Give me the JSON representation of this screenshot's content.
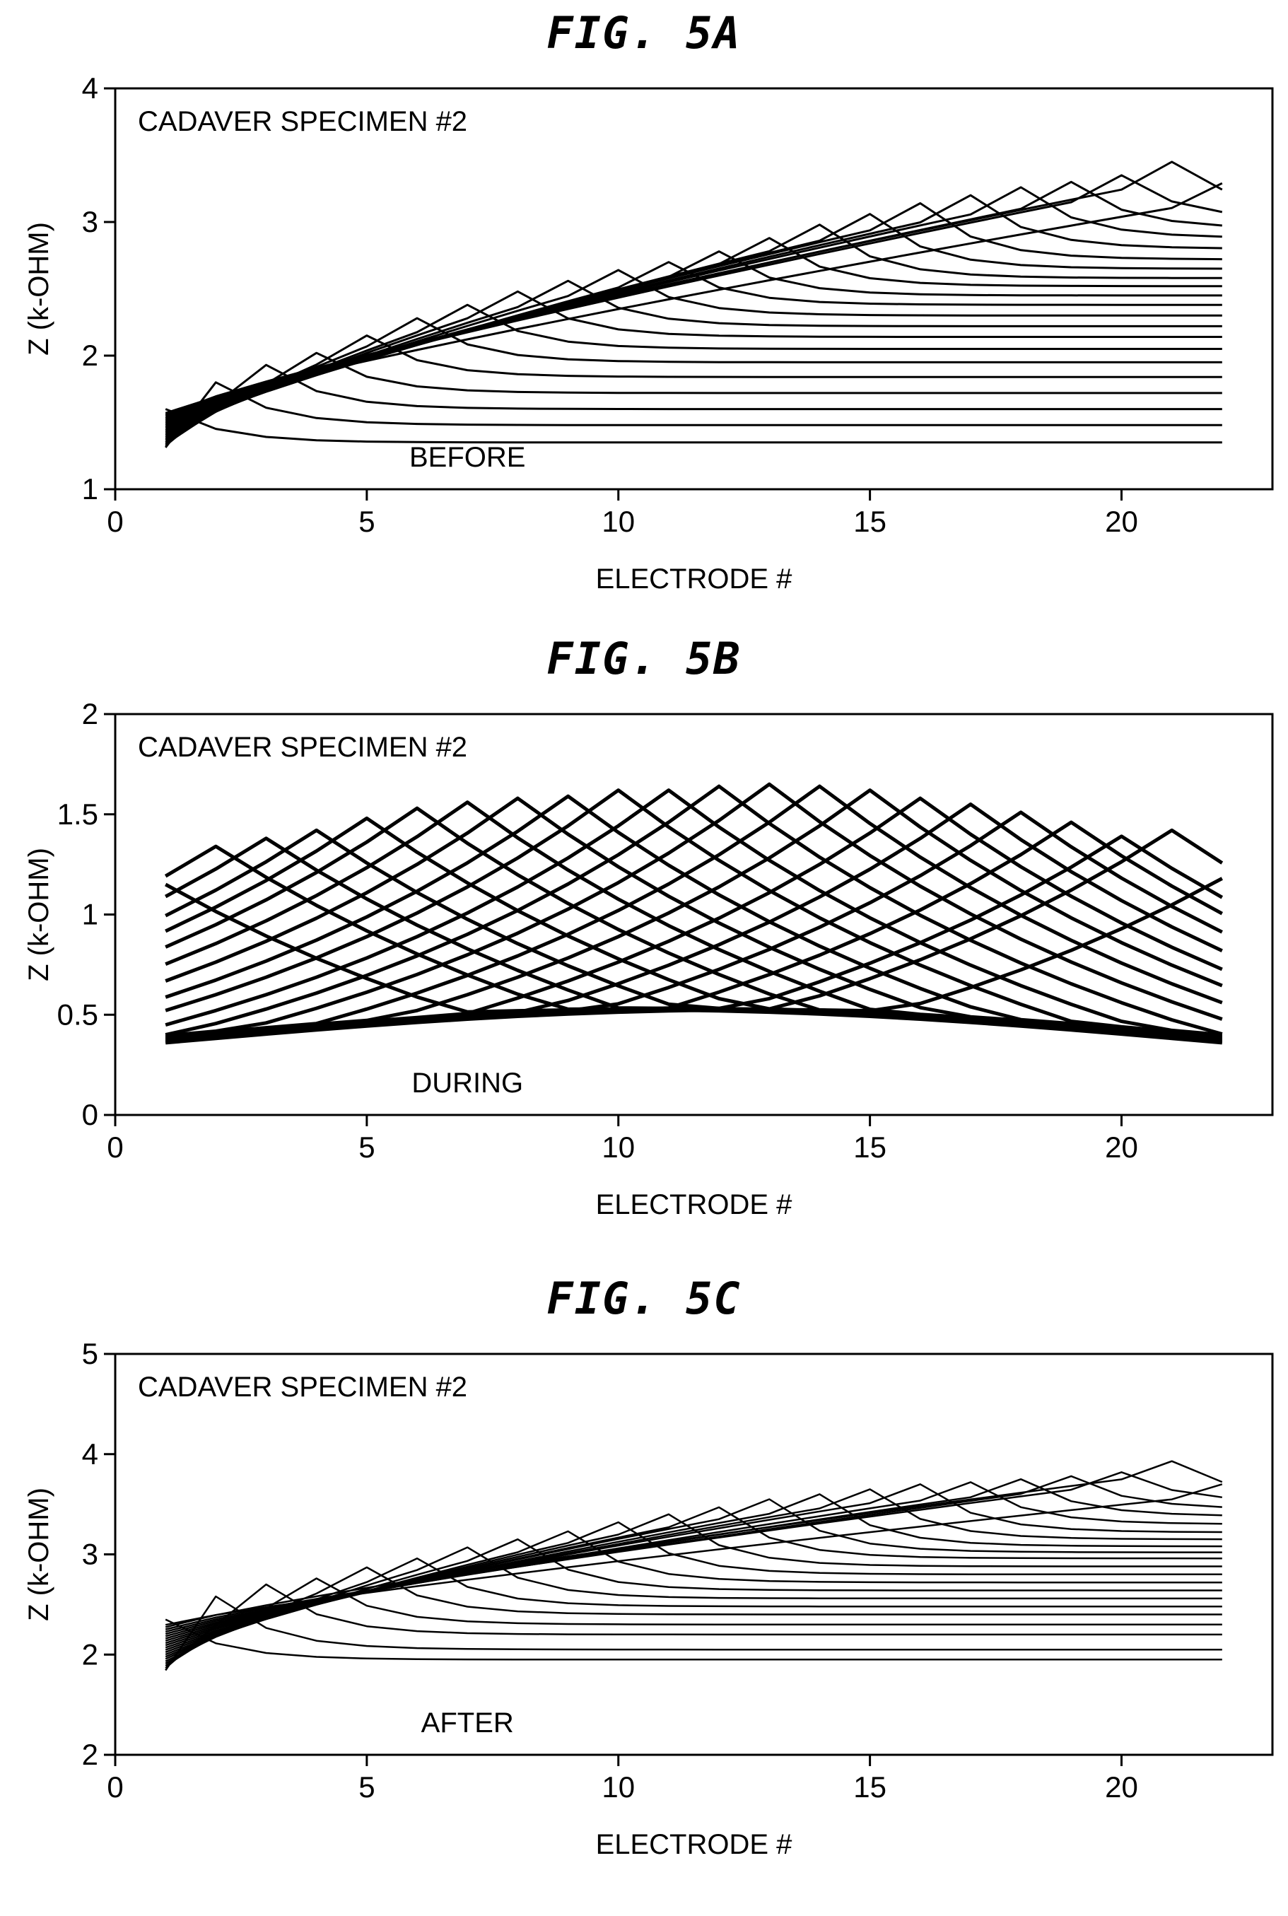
{
  "chart_data": [
    {
      "type": "line",
      "title": "FIG. 5A",
      "annotation": "CADAVER SPECIMEN #2",
      "label": "BEFORE",
      "xlabel": "ELECTRODE #",
      "ylabel": "Z (k-OHM)",
      "xlim": [
        0,
        23
      ],
      "ylim": [
        1,
        4
      ],
      "xticks": [
        "0",
        "5",
        "10",
        "15",
        "20"
      ],
      "yticks": [
        "1",
        "2",
        "3",
        "4"
      ],
      "grid": false,
      "x": [
        1,
        2,
        3,
        4,
        5,
        6,
        7,
        8,
        9,
        10,
        11,
        12,
        13,
        14,
        15,
        16,
        17,
        18,
        19,
        20,
        21,
        22
      ],
      "curve_count": 22,
      "low_curve_start": 1.3,
      "low_curve_end": 1.32,
      "peak_values": [
        1.6,
        1.8,
        1.93,
        2.02,
        2.15,
        2.28,
        2.38,
        2.48,
        2.56,
        2.64,
        2.7,
        2.78,
        2.88,
        2.98,
        3.06,
        3.14,
        3.2,
        3.26,
        3.3,
        3.35,
        3.45,
        3.29
      ],
      "tail_values": [
        1.35,
        1.48,
        1.6,
        1.72,
        1.84,
        1.95,
        2.05,
        2.14,
        2.22,
        2.3,
        2.38,
        2.45,
        2.52,
        2.58,
        2.65,
        2.72,
        2.8,
        2.88,
        2.95,
        3.02,
        3.1,
        3.29
      ],
      "line_width": 3
    },
    {
      "type": "line",
      "title": "FIG. 5B",
      "annotation": "CADAVER SPECIMEN #2",
      "label": "DURING",
      "xlabel": "ELECTRODE #",
      "ylabel": "Z (k-OHM)",
      "xlim": [
        0,
        23
      ],
      "ylim": [
        0,
        2
      ],
      "xticks": [
        "0",
        "5",
        "10",
        "15",
        "20"
      ],
      "yticks": [
        "0",
        "0.5",
        "1",
        "1.5",
        "2"
      ],
      "grid": false,
      "x": [
        1,
        2,
        3,
        4,
        5,
        6,
        7,
        8,
        9,
        10,
        11,
        12,
        13,
        14,
        15,
        16,
        17,
        18,
        19,
        20,
        21,
        22
      ],
      "curve_count": 22,
      "peak_values": [
        1.15,
        1.34,
        1.38,
        1.42,
        1.48,
        1.53,
        1.56,
        1.58,
        1.59,
        1.62,
        1.62,
        1.64,
        1.65,
        1.64,
        1.62,
        1.58,
        1.55,
        1.51,
        1.46,
        1.39,
        1.42,
        1.18
      ],
      "line_width": 5
    },
    {
      "type": "line",
      "title": "FIG. 5C",
      "annotation": "CADAVER SPECIMEN #2",
      "label": "AFTER",
      "xlabel": "ELECTRODE #",
      "ylabel": "Z (k-OHM)",
      "xlim": [
        0,
        23
      ],
      "ylim": [
        1,
        5
      ],
      "xticks": [
        "0",
        "5",
        "10",
        "15",
        "20"
      ],
      "yticks": [
        "2",
        "2",
        "3",
        "4",
        "5"
      ],
      "grid": false,
      "x": [
        1,
        2,
        3,
        4,
        5,
        6,
        7,
        8,
        9,
        10,
        11,
        12,
        13,
        14,
        15,
        16,
        17,
        18,
        19,
        20,
        21,
        22
      ],
      "curve_count": 22,
      "low_curve_start": 1.82,
      "low_curve_end": 1.82,
      "peak_values": [
        2.35,
        2.58,
        2.7,
        2.76,
        2.87,
        2.96,
        3.07,
        3.15,
        3.23,
        3.32,
        3.4,
        3.47,
        3.55,
        3.6,
        3.65,
        3.7,
        3.72,
        3.75,
        3.78,
        3.82,
        3.93,
        3.7
      ],
      "tail_values": [
        1.95,
        2.05,
        2.2,
        2.3,
        2.4,
        2.48,
        2.56,
        2.64,
        2.72,
        2.8,
        2.88,
        2.96,
        3.02,
        3.08,
        3.15,
        3.22,
        3.3,
        3.38,
        3.45,
        3.52,
        3.58,
        3.7
      ],
      "line_width": 2.5
    }
  ]
}
